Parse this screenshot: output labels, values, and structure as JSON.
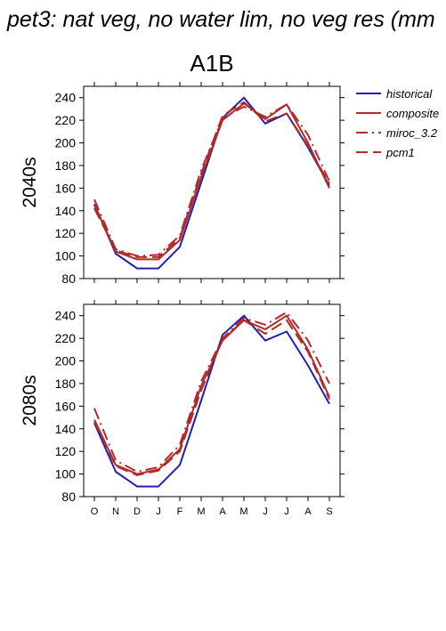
{
  "figure": {
    "title": "pet3: nat veg, no water lim, no veg res (mm",
    "scenario": "A1B"
  },
  "legend": {
    "position": "right",
    "entries": [
      {
        "label": "historical",
        "color": "#1f1fb4",
        "dash": "solid"
      },
      {
        "label": "composite",
        "color": "#b42828",
        "dash": "solid"
      },
      {
        "label": "miroc_3.2",
        "color": "#b42828",
        "dash": "dashdot"
      },
      {
        "label": "pcm1",
        "color": "#b42828",
        "dash": "dash"
      }
    ]
  },
  "chart_data": [
    {
      "type": "line",
      "row_label": "2040s",
      "categories": [
        "O",
        "N",
        "D",
        "J",
        "F",
        "M",
        "A",
        "M",
        "J",
        "J",
        "A",
        "S"
      ],
      "ylim": [
        80,
        250
      ],
      "yticks": [
        80,
        100,
        120,
        140,
        160,
        180,
        200,
        220,
        240
      ],
      "series": [
        {
          "name": "historical",
          "color": "#1f1fb4",
          "dash": "solid",
          "values": [
            146,
            102,
            89,
            89,
            108,
            165,
            222,
            240,
            217,
            226,
            196,
            162
          ]
        },
        {
          "name": "composite",
          "color": "#b42828",
          "dash": "solid",
          "values": [
            145,
            104,
            97,
            97,
            114,
            170,
            220,
            235,
            221,
            234,
            200,
            160
          ]
        },
        {
          "name": "miroc_3.2",
          "color": "#b42828",
          "dash": "dashdot",
          "values": [
            150,
            106,
            100,
            101,
            118,
            176,
            222,
            232,
            223,
            234,
            207,
            166
          ]
        },
        {
          "name": "pcm1",
          "color": "#b42828",
          "dash": "dash",
          "values": [
            142,
            105,
            99,
            99,
            116,
            173,
            224,
            236,
            219,
            226,
            197,
            164
          ]
        }
      ]
    },
    {
      "type": "line",
      "row_label": "2080s",
      "categories": [
        "O",
        "N",
        "D",
        "J",
        "F",
        "M",
        "A",
        "M",
        "J",
        "J",
        "A",
        "S"
      ],
      "ylim": [
        80,
        250
      ],
      "yticks": [
        80,
        100,
        120,
        140,
        160,
        180,
        200,
        220,
        240
      ],
      "series": [
        {
          "name": "historical",
          "color": "#1f1fb4",
          "dash": "solid",
          "values": [
            145,
            102,
            89,
            89,
            108,
            165,
            223,
            240,
            218,
            226,
            196,
            162
          ]
        },
        {
          "name": "composite",
          "color": "#b42828",
          "dash": "solid",
          "values": [
            148,
            108,
            100,
            104,
            122,
            178,
            218,
            236,
            228,
            240,
            210,
            168
          ]
        },
        {
          "name": "miroc_3.2",
          "color": "#b42828",
          "dash": "dashdot",
          "values": [
            158,
            112,
            102,
            106,
            126,
            182,
            220,
            238,
            232,
            243,
            218,
            180
          ]
        },
        {
          "name": "pcm1",
          "color": "#b42828",
          "dash": "dash",
          "values": [
            146,
            107,
            99,
            103,
            120,
            174,
            219,
            236,
            224,
            236,
            208,
            166
          ]
        }
      ]
    }
  ]
}
